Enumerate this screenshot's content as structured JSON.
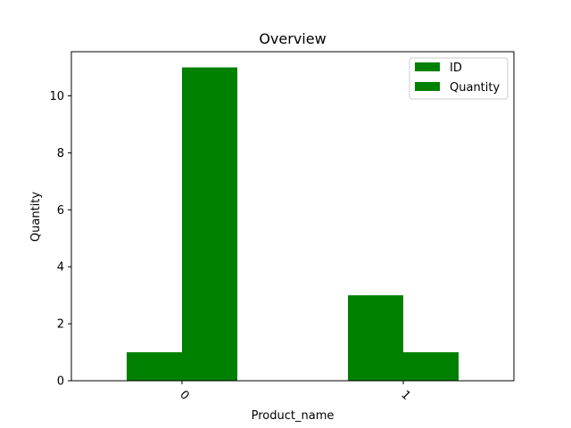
{
  "chart_data": {
    "type": "bar",
    "title": "Overview",
    "xlabel": "Product_name",
    "ylabel": "Quantity",
    "categories": [
      "0",
      "1"
    ],
    "series": [
      {
        "name": "ID",
        "values": [
          1,
          3
        ],
        "color": "#008000"
      },
      {
        "name": "Quantity",
        "values": [
          11,
          1
        ],
        "color": "#008000"
      }
    ],
    "ylim": [
      0,
      11.55
    ],
    "yticks": [
      0,
      2,
      4,
      6,
      8,
      10
    ],
    "ytick_labels": [
      "0",
      "2",
      "4",
      "6",
      "8",
      "10"
    ],
    "xtick_rotation": "45 degrees",
    "grid": false,
    "legend_position": "top-right"
  }
}
